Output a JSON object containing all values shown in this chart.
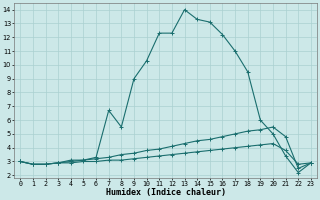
{
  "xlabel": "Humidex (Indice chaleur)",
  "background_color": "#cce8e8",
  "grid_color": "#aad0d0",
  "line_color": "#1a6e6e",
  "xlim": [
    -0.5,
    23.5
  ],
  "ylim": [
    1.8,
    14.5
  ],
  "xticks": [
    0,
    1,
    2,
    3,
    4,
    5,
    6,
    7,
    8,
    9,
    10,
    11,
    12,
    13,
    14,
    15,
    16,
    17,
    18,
    19,
    20,
    21,
    22,
    23
  ],
  "yticks": [
    2,
    3,
    4,
    5,
    6,
    7,
    8,
    9,
    10,
    11,
    12,
    13,
    14
  ],
  "line1_x": [
    0,
    1,
    2,
    3,
    4,
    5,
    6,
    7,
    8,
    9,
    10,
    11,
    12,
    13,
    14,
    15,
    16,
    17,
    18,
    19,
    20,
    21,
    22,
    23
  ],
  "line1_y": [
    3.0,
    2.8,
    2.8,
    2.9,
    3.1,
    3.1,
    3.3,
    6.7,
    5.5,
    9.0,
    10.3,
    12.3,
    12.3,
    14.0,
    13.3,
    13.1,
    12.2,
    11.0,
    9.5,
    6.0,
    5.0,
    3.4,
    2.2,
    2.9
  ],
  "line2_x": [
    0,
    1,
    2,
    3,
    4,
    5,
    6,
    7,
    8,
    9,
    10,
    11,
    12,
    13,
    14,
    15,
    16,
    17,
    18,
    19,
    20,
    21,
    22,
    23
  ],
  "line2_y": [
    3.0,
    2.8,
    2.8,
    2.9,
    3.0,
    3.1,
    3.2,
    3.3,
    3.5,
    3.6,
    3.8,
    3.9,
    4.1,
    4.3,
    4.5,
    4.6,
    4.8,
    5.0,
    5.2,
    5.3,
    5.5,
    4.8,
    2.5,
    2.9
  ],
  "line3_x": [
    0,
    1,
    2,
    3,
    4,
    5,
    6,
    7,
    8,
    9,
    10,
    11,
    12,
    13,
    14,
    15,
    16,
    17,
    18,
    19,
    20,
    21,
    22,
    23
  ],
  "line3_y": [
    3.0,
    2.8,
    2.8,
    2.9,
    2.9,
    3.0,
    3.0,
    3.1,
    3.1,
    3.2,
    3.3,
    3.4,
    3.5,
    3.6,
    3.7,
    3.8,
    3.9,
    4.0,
    4.1,
    4.2,
    4.3,
    3.8,
    2.8,
    2.9
  ],
  "markersize": 2.0,
  "linewidth": 0.8,
  "tick_fontsize": 4.8,
  "label_fontsize": 6.0
}
